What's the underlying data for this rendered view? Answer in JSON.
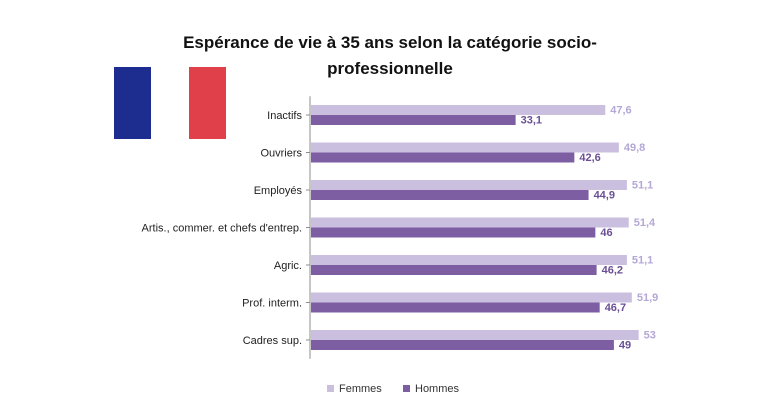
{
  "chart_data": {
    "type": "bar",
    "orientation": "horizontal",
    "title": "Espérance de vie à 35 ans selon la catégorie socio-professionnelle",
    "title_lines": [
      "Espérance de vie à 35 ans selon la catégorie socio-",
      "professionnelle"
    ],
    "categories": [
      "Inactifs",
      "Ouvriers",
      "Employés",
      "Artis., commer. et chefs d'entrep.",
      "Agric.",
      "Prof. interm.",
      "Cadres sup."
    ],
    "series": [
      {
        "name": "Femmes",
        "values": [
          47.6,
          49.8,
          51.1,
          51.4,
          51.1,
          51.9,
          53
        ],
        "labels": [
          "47,6",
          "49,8",
          "51,1",
          "51,4",
          "51,1",
          "51,9",
          "53"
        ],
        "color": "#cbbfe0",
        "label_color": "#b5a7d6"
      },
      {
        "name": "Hommes",
        "values": [
          33.1,
          42.6,
          44.9,
          46,
          46.2,
          46.7,
          49
        ],
        "labels": [
          "33,1",
          "42,6",
          "44,9",
          "46",
          "46,2",
          "46,7",
          "49"
        ],
        "color": "#7d5ea3",
        "label_color": "#6a4f94"
      }
    ],
    "xlim": [
      0,
      55
    ],
    "legend_position": "bottom",
    "grid": false
  },
  "flag": {
    "colors": [
      "#1c2d8f",
      "#ffffff",
      "#e0404a"
    ]
  }
}
